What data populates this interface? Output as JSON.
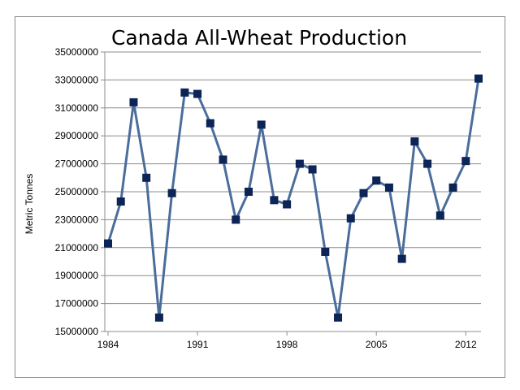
{
  "chart_data": {
    "type": "line",
    "title": "Canada All-Wheat Production",
    "ylabel": "Metric Tonnes",
    "xlabel": "",
    "x": [
      1984,
      1985,
      1986,
      1987,
      1988,
      1989,
      1990,
      1991,
      1992,
      1993,
      1994,
      1995,
      1996,
      1997,
      1998,
      1999,
      2000,
      2001,
      2002,
      2003,
      2004,
      2005,
      2006,
      2007,
      2008,
      2009,
      2010,
      2011,
      2012,
      2013
    ],
    "series": [
      {
        "values": [
          21300000,
          24300000,
          31400000,
          26000000,
          16000000,
          24900000,
          32100000,
          32000000,
          29900000,
          27300000,
          23000000,
          25000000,
          29800000,
          24400000,
          24100000,
          27000000,
          26600000,
          20700000,
          16000000,
          23100000,
          24900000,
          25800000,
          25300000,
          20200000,
          28600000,
          27000000,
          23300000,
          25300000,
          27200000,
          33100000
        ]
      }
    ],
    "ylim": [
      15000000,
      35000000
    ],
    "yticks": [
      15000000,
      17000000,
      19000000,
      21000000,
      23000000,
      25000000,
      27000000,
      29000000,
      31000000,
      33000000,
      35000000
    ],
    "ytick_labels": [
      "15000000",
      "17000000",
      "19000000",
      "21000000",
      "23000000",
      "25000000",
      "27000000",
      "29000000",
      "31000000",
      "33000000",
      "35000000"
    ],
    "xlim": [
      1984,
      2013
    ],
    "xticks": [
      1984,
      1991,
      1998,
      2005,
      2012
    ],
    "xtick_labels": [
      "1984",
      "1991",
      "1998",
      "2005",
      "2012"
    ],
    "grid": "horizontal",
    "legend": "none",
    "colors": {
      "line": "#4a6d9c",
      "marker": "#0d2457",
      "grid": "#8c8c8c",
      "axis": "#8c8c8c"
    }
  }
}
